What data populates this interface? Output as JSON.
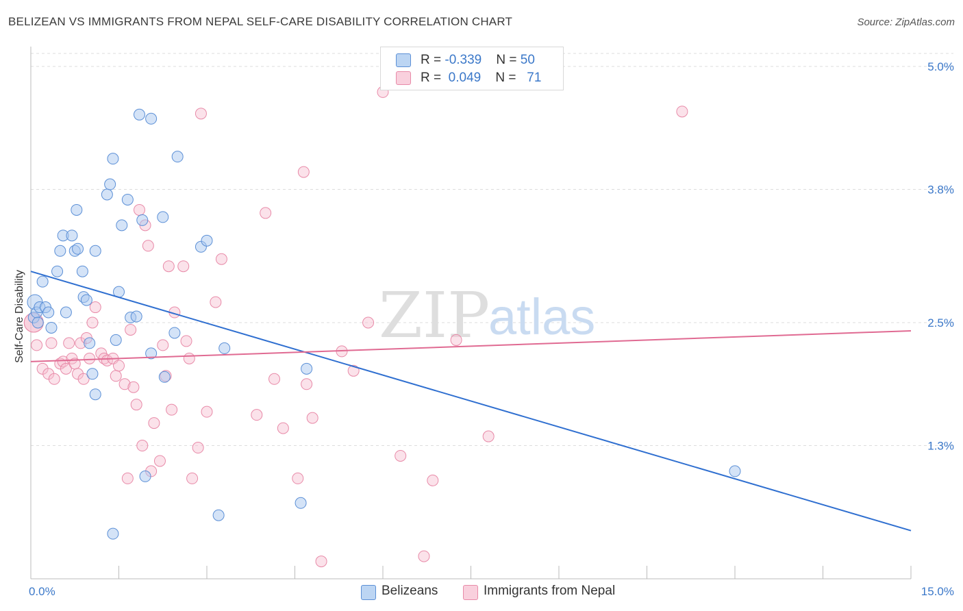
{
  "header": {
    "title": "BELIZEAN VS IMMIGRANTS FROM NEPAL SELF-CARE DISABILITY CORRELATION CHART",
    "source": "Source: ZipAtlas.com"
  },
  "legend_top": {
    "rows": [
      {
        "r_label": "R = ",
        "r_value": "-0.339",
        "n_label": "N = ",
        "n_value": "50"
      },
      {
        "r_label": "R = ",
        "r_value": "0.049",
        "n_label": "N = ",
        "n_value": "71"
      }
    ]
  },
  "legend_bottom": {
    "items": [
      {
        "label": "Belizeans"
      },
      {
        "label": "Immigrants from Nepal"
      }
    ]
  },
  "colors": {
    "belizean_fill": "#a9c8f0",
    "belizean_stroke": "#5b8fd6",
    "belizean_line": "#2f6fd0",
    "nepal_fill": "#f6bfd0",
    "nepal_stroke": "#e88aa8",
    "nepal_line": "#e06a92",
    "axis_text": "#3b78c9",
    "watermark": "#d9d9d9"
  },
  "chart_data": {
    "type": "scatter",
    "title": "BELIZEAN VS IMMIGRANTS FROM NEPAL SELF-CARE DISABILITY CORRELATION CHART",
    "xlabel": "",
    "ylabel": "Self-Care Disability",
    "xlim": [
      0,
      15
    ],
    "ylim": [
      0,
      5.2
    ],
    "x_ticks": [
      0,
      1.5,
      3,
      4.5,
      6,
      7.5,
      9,
      10.5,
      12,
      13.5,
      15
    ],
    "x_tick_labels": [
      {
        "value": 0,
        "label": "0.0%"
      },
      {
        "value": 15,
        "label": "15.0%"
      }
    ],
    "y_ticks": [
      {
        "value": 1.3,
        "label": "1.3%"
      },
      {
        "value": 2.5,
        "label": "2.5%"
      },
      {
        "value": 3.8,
        "label": "3.8%"
      },
      {
        "value": 5.0,
        "label": "5.0%"
      }
    ],
    "grid": true,
    "watermark": {
      "zip": "ZIP",
      "atlas": "atlas"
    },
    "series": [
      {
        "name": "Belizeans",
        "R": -0.339,
        "N": 50,
        "trend": {
          "x": [
            0,
            15
          ],
          "y": [
            3.0,
            0.47
          ]
        },
        "points": [
          [
            0.05,
            2.55
          ],
          [
            0.07,
            2.7
          ],
          [
            0.1,
            2.6
          ],
          [
            0.12,
            2.5
          ],
          [
            0.15,
            2.65
          ],
          [
            0.2,
            2.9
          ],
          [
            0.25,
            2.65
          ],
          [
            0.3,
            2.6
          ],
          [
            0.35,
            2.45
          ],
          [
            0.45,
            3.0
          ],
          [
            0.5,
            3.2
          ],
          [
            0.55,
            3.35
          ],
          [
            0.6,
            2.6
          ],
          [
            0.7,
            3.35
          ],
          [
            0.75,
            3.2
          ],
          [
            0.78,
            3.6
          ],
          [
            0.8,
            3.22
          ],
          [
            0.88,
            3.0
          ],
          [
            0.9,
            2.75
          ],
          [
            0.95,
            2.72
          ],
          [
            1.0,
            2.3
          ],
          [
            1.05,
            2.0
          ],
          [
            1.1,
            1.8
          ],
          [
            1.1,
            3.2
          ],
          [
            1.3,
            3.75
          ],
          [
            1.35,
            3.85
          ],
          [
            1.4,
            4.1
          ],
          [
            1.45,
            2.33
          ],
          [
            1.5,
            2.8
          ],
          [
            1.55,
            3.45
          ],
          [
            1.65,
            3.7
          ],
          [
            1.7,
            2.55
          ],
          [
            1.8,
            2.56
          ],
          [
            1.85,
            4.53
          ],
          [
            1.9,
            3.5
          ],
          [
            1.95,
            1.0
          ],
          [
            2.05,
            4.49
          ],
          [
            2.05,
            2.2
          ],
          [
            2.25,
            3.53
          ],
          [
            2.28,
            1.97
          ],
          [
            2.45,
            2.4
          ],
          [
            2.5,
            4.12
          ],
          [
            2.9,
            3.24
          ],
          [
            3.0,
            3.3
          ],
          [
            3.2,
            0.62
          ],
          [
            3.3,
            2.25
          ],
          [
            4.6,
            0.74
          ],
          [
            4.7,
            2.05
          ],
          [
            1.4,
            0.44
          ],
          [
            12.0,
            1.05
          ]
        ]
      },
      {
        "name": "Immigrants from Nepal",
        "R": 0.049,
        "N": 71,
        "trend": {
          "x": [
            0,
            15
          ],
          "y": [
            2.12,
            2.42
          ]
        },
        "points": [
          [
            0.05,
            2.5
          ],
          [
            0.1,
            2.28
          ],
          [
            0.2,
            2.05
          ],
          [
            0.3,
            2.0
          ],
          [
            0.35,
            2.3
          ],
          [
            0.4,
            1.95
          ],
          [
            0.5,
            2.1
          ],
          [
            0.55,
            2.12
          ],
          [
            0.6,
            2.05
          ],
          [
            0.65,
            2.3
          ],
          [
            0.7,
            2.15
          ],
          [
            0.75,
            2.1
          ],
          [
            0.8,
            2.0
          ],
          [
            0.85,
            2.3
          ],
          [
            0.9,
            1.95
          ],
          [
            0.95,
            2.35
          ],
          [
            1.0,
            2.15
          ],
          [
            1.05,
            2.5
          ],
          [
            1.1,
            2.65
          ],
          [
            1.2,
            2.2
          ],
          [
            1.25,
            2.15
          ],
          [
            1.3,
            2.13
          ],
          [
            1.4,
            2.15
          ],
          [
            1.45,
            1.98
          ],
          [
            1.5,
            2.08
          ],
          [
            1.6,
            1.9
          ],
          [
            1.65,
            0.98
          ],
          [
            1.7,
            2.43
          ],
          [
            1.75,
            1.87
          ],
          [
            1.8,
            1.7
          ],
          [
            1.85,
            3.6
          ],
          [
            1.9,
            1.3
          ],
          [
            1.95,
            3.45
          ],
          [
            2.0,
            3.25
          ],
          [
            2.05,
            1.05
          ],
          [
            2.1,
            1.52
          ],
          [
            2.2,
            1.15
          ],
          [
            2.25,
            2.28
          ],
          [
            2.3,
            1.98
          ],
          [
            2.35,
            3.05
          ],
          [
            2.4,
            1.65
          ],
          [
            2.45,
            2.6
          ],
          [
            2.6,
            3.05
          ],
          [
            2.65,
            2.32
          ],
          [
            2.7,
            2.15
          ],
          [
            2.75,
            0.98
          ],
          [
            2.85,
            1.28
          ],
          [
            2.9,
            4.54
          ],
          [
            3.0,
            1.63
          ],
          [
            3.15,
            2.7
          ],
          [
            3.25,
            3.12
          ],
          [
            3.85,
            1.6
          ],
          [
            4.0,
            3.57
          ],
          [
            4.15,
            1.95
          ],
          [
            4.3,
            1.47
          ],
          [
            4.55,
            0.98
          ],
          [
            4.65,
            3.97
          ],
          [
            4.7,
            1.9
          ],
          [
            4.8,
            1.57
          ],
          [
            4.95,
            0.17
          ],
          [
            5.3,
            2.22
          ],
          [
            5.5,
            2.03
          ],
          [
            5.75,
            2.5
          ],
          [
            6.3,
            1.2
          ],
          [
            6.7,
            0.22
          ],
          [
            6.85,
            0.96
          ],
          [
            7.25,
            2.33
          ],
          [
            7.8,
            1.39
          ],
          [
            11.1,
            4.56
          ],
          [
            6.0,
            4.75
          ],
          [
            0.05,
            2.5
          ]
        ]
      }
    ]
  }
}
